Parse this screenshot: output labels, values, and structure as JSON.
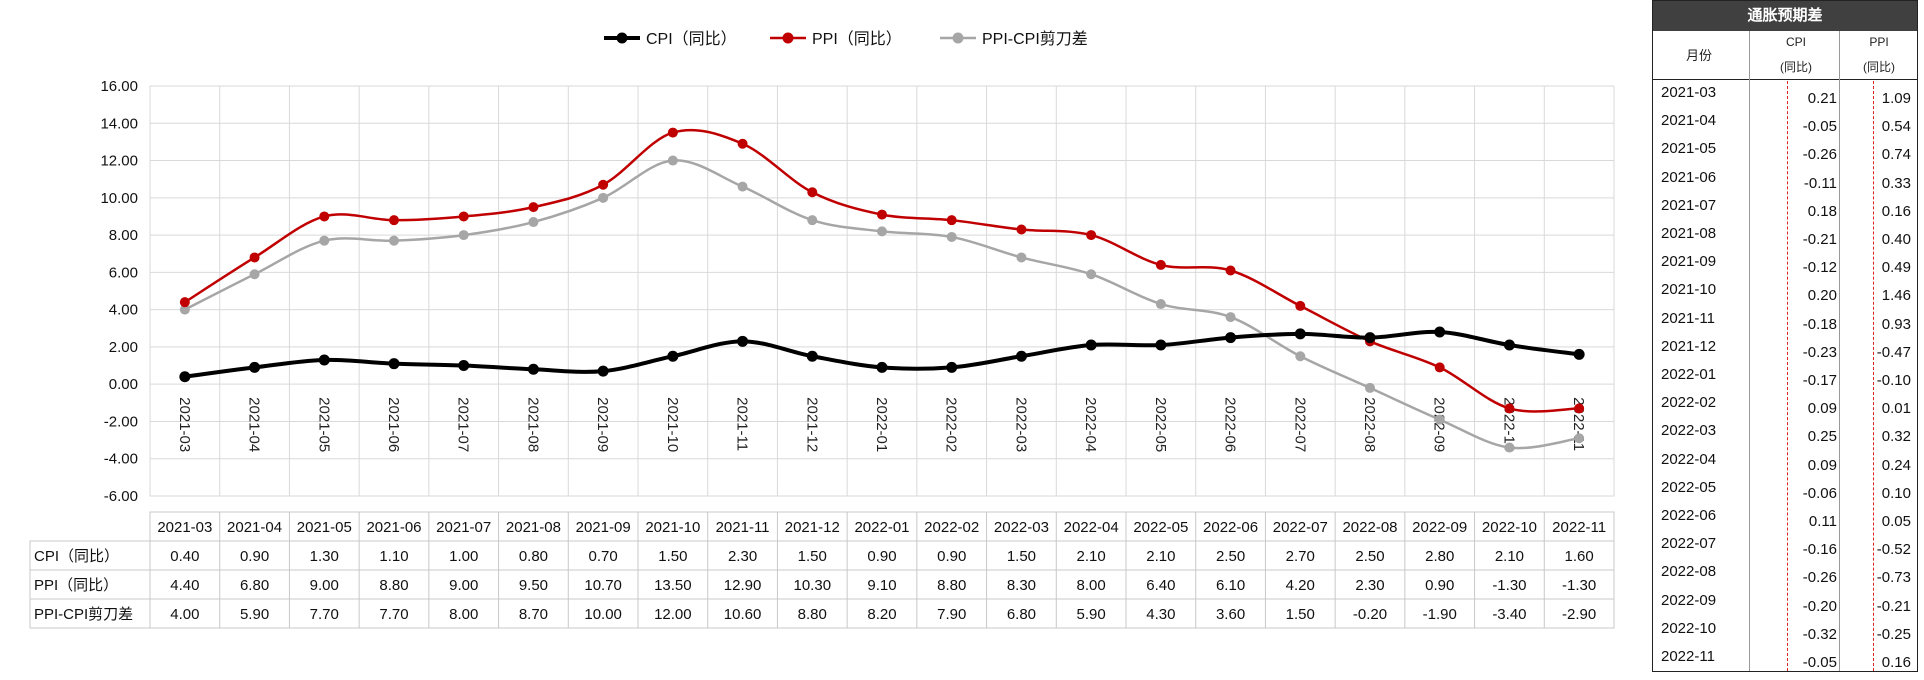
{
  "chart_data": {
    "type": "line",
    "categories": [
      "2021-03",
      "2021-04",
      "2021-05",
      "2021-06",
      "2021-07",
      "2021-08",
      "2021-09",
      "2021-10",
      "2021-11",
      "2021-12",
      "2022-01",
      "2022-02",
      "2022-03",
      "2022-04",
      "2022-05",
      "2022-06",
      "2022-07",
      "2022-08",
      "2022-09",
      "2022-10",
      "2022-11"
    ],
    "series": [
      {
        "name": "CPI（同比）",
        "color": "#000000",
        "values": [
          0.4,
          0.9,
          1.3,
          1.1,
          1.0,
          0.8,
          0.7,
          1.5,
          2.3,
          1.5,
          0.9,
          0.9,
          1.5,
          2.1,
          2.1,
          2.5,
          2.7,
          2.5,
          2.8,
          2.1,
          1.6
        ]
      },
      {
        "name": "PPI（同比）",
        "color": "#c00000",
        "values": [
          4.4,
          6.8,
          9.0,
          8.8,
          9.0,
          9.5,
          10.7,
          13.5,
          12.9,
          10.3,
          9.1,
          8.8,
          8.3,
          8.0,
          6.4,
          6.1,
          4.2,
          2.3,
          0.9,
          -1.3,
          -1.3
        ]
      },
      {
        "name": "PPI-CPI剪刀差",
        "color": "#a6a6a6",
        "values": [
          4.0,
          5.9,
          7.7,
          7.7,
          8.0,
          8.7,
          10.0,
          12.0,
          10.6,
          8.8,
          8.2,
          7.9,
          6.8,
          5.9,
          4.3,
          3.6,
          1.5,
          -0.2,
          -1.9,
          -3.4,
          -2.9
        ]
      }
    ],
    "yticks": [
      "16.00",
      "14.00",
      "12.00",
      "10.00",
      "8.00",
      "6.00",
      "4.00",
      "2.00",
      "0.00",
      "-2.00",
      "-4.00",
      "-6.00"
    ],
    "ylim": [
      -6,
      16
    ],
    "grid": true,
    "legend": "top"
  },
  "side_table": {
    "title": "通胀预期差",
    "month_header": "月份",
    "cpi_header": "CPI",
    "cpi_sub": "(同比)",
    "ppi_header": "PPI",
    "ppi_sub": "(同比)",
    "rows": [
      {
        "m": "2021-03",
        "c": "0.21",
        "p": "1.09"
      },
      {
        "m": "2021-04",
        "c": "-0.05",
        "p": "0.54"
      },
      {
        "m": "2021-05",
        "c": "-0.26",
        "p": "0.74"
      },
      {
        "m": "2021-06",
        "c": "-0.11",
        "p": "0.33"
      },
      {
        "m": "2021-07",
        "c": "0.18",
        "p": "0.16"
      },
      {
        "m": "2021-08",
        "c": "-0.21",
        "p": "0.40"
      },
      {
        "m": "2021-09",
        "c": "-0.12",
        "p": "0.49"
      },
      {
        "m": "2021-10",
        "c": "0.20",
        "p": "1.46"
      },
      {
        "m": "2021-11",
        "c": "-0.18",
        "p": "0.93"
      },
      {
        "m": "2021-12",
        "c": "-0.23",
        "p": "-0.47"
      },
      {
        "m": "2022-01",
        "c": "-0.17",
        "p": "-0.10"
      },
      {
        "m": "2022-02",
        "c": "0.09",
        "p": "0.01"
      },
      {
        "m": "2022-03",
        "c": "0.25",
        "p": "0.32"
      },
      {
        "m": "2022-04",
        "c": "0.09",
        "p": "0.24"
      },
      {
        "m": "2022-05",
        "c": "-0.06",
        "p": "0.10"
      },
      {
        "m": "2022-06",
        "c": "0.11",
        "p": "0.05"
      },
      {
        "m": "2022-07",
        "c": "-0.16",
        "p": "-0.52"
      },
      {
        "m": "2022-08",
        "c": "-0.26",
        "p": "-0.73"
      },
      {
        "m": "2022-09",
        "c": "-0.20",
        "p": "-0.21"
      },
      {
        "m": "2022-10",
        "c": "-0.32",
        "p": "-0.25"
      },
      {
        "m": "2022-11",
        "c": "-0.05",
        "p": "0.16"
      }
    ]
  }
}
